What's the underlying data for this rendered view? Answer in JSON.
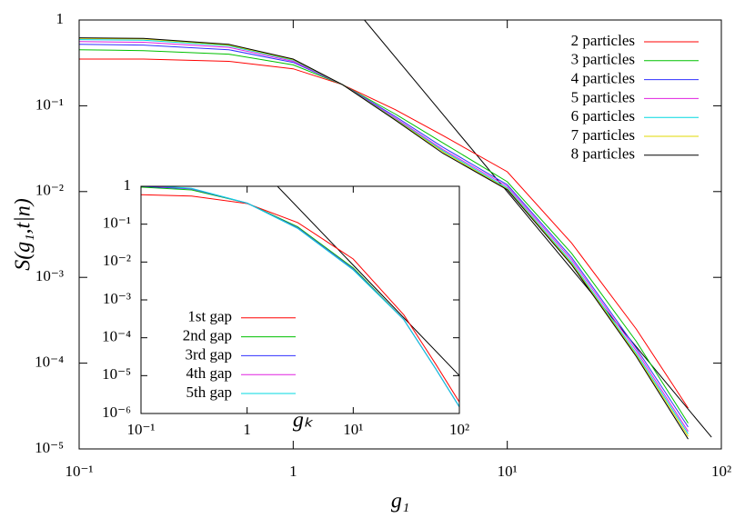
{
  "chart_data": [
    {
      "type": "line",
      "x_label": "g₁",
      "y_label": "S(g₁,t|n)",
      "log_x": true,
      "log_y": true,
      "xlim": [
        0.1,
        100
      ],
      "ylim": [
        1e-05,
        1
      ],
      "xticks": [
        {
          "value": 0.1,
          "label": "10⁻¹"
        },
        1,
        {
          "value": 10,
          "label": "10¹"
        },
        {
          "value": 100,
          "label": "10²"
        }
      ],
      "yticks": [
        {
          "value": 1e-05,
          "label": "10⁻⁵"
        },
        {
          "value": 0.0001,
          "label": "10⁻⁴"
        },
        {
          "value": 0.001,
          "label": "10⁻³"
        },
        {
          "value": 0.01,
          "label": "10⁻²"
        },
        {
          "value": 0.1,
          "label": "10⁻¹"
        },
        1
      ],
      "legend": "upper right",
      "x": [
        0.1,
        0.2,
        0.5,
        1,
        1.7,
        3,
        5,
        10,
        20,
        40,
        70
      ],
      "series": [
        {
          "name": "2 particles",
          "color": "#ff0000",
          "values": [
            0.35,
            0.35,
            0.33,
            0.27,
            0.176,
            0.09,
            0.045,
            0.017,
            0.0025,
            0.00025,
            3e-05
          ]
        },
        {
          "name": "3 particles",
          "color": "#00c000",
          "values": [
            0.45,
            0.44,
            0.4,
            0.3,
            0.176,
            0.08,
            0.037,
            0.013,
            0.0019,
            0.00018,
            2e-05
          ]
        },
        {
          "name": "4 particles",
          "color": "#3030ff",
          "values": [
            0.52,
            0.51,
            0.45,
            0.32,
            0.176,
            0.075,
            0.033,
            0.012,
            0.0017,
            0.00015,
            1.8e-05
          ]
        },
        {
          "name": "5 particles",
          "color": "#e020e0",
          "values": [
            0.56,
            0.55,
            0.48,
            0.33,
            0.176,
            0.072,
            0.031,
            0.0115,
            0.0016,
            0.00014,
            1.6e-05
          ]
        },
        {
          "name": "6 particles",
          "color": "#00d8e0",
          "values": [
            0.59,
            0.58,
            0.5,
            0.34,
            0.176,
            0.07,
            0.03,
            0.011,
            0.0015,
            0.00013,
            1.5e-05
          ]
        },
        {
          "name": "7 particles",
          "color": "#e0d800",
          "values": [
            0.61,
            0.6,
            0.51,
            0.345,
            0.176,
            0.069,
            0.029,
            0.0107,
            0.00145,
            0.000125,
            1.4e-05
          ]
        },
        {
          "name": "8 particles",
          "color": "#000000",
          "values": [
            0.62,
            0.61,
            0.52,
            0.35,
            0.176,
            0.068,
            0.028,
            0.0105,
            0.0014,
            0.00012,
            1.3e-05
          ]
        }
      ],
      "lines": [
        {
          "color": "#000000",
          "x": [
            2.15,
            90
          ],
          "values": [
            1,
            1.37e-05
          ]
        }
      ]
    },
    {
      "type": "line",
      "x_label": "gₖ",
      "log_x": true,
      "log_y": true,
      "xlim": [
        0.1,
        100
      ],
      "ylim": [
        1e-06,
        1
      ],
      "xticks": [
        {
          "value": 0.1,
          "label": "10⁻¹"
        },
        1,
        {
          "value": 10,
          "label": "10¹"
        },
        {
          "value": 100,
          "label": "10²"
        }
      ],
      "yticks": [
        {
          "value": 1e-06,
          "label": "10⁻⁶"
        },
        {
          "value": 1e-05,
          "label": "10⁻⁵"
        },
        {
          "value": 0.0001,
          "label": "10⁻⁴"
        },
        {
          "value": 0.001,
          "label": "10⁻³"
        },
        {
          "value": 0.01,
          "label": "10⁻²"
        },
        {
          "value": 0.1,
          "label": "10⁻¹"
        },
        1
      ],
      "legend": "lower left",
      "x": [
        0.1,
        0.3,
        1,
        3,
        10,
        30,
        60,
        100
      ],
      "series": [
        {
          "name": "1st gap",
          "color": "#ff0000",
          "values": [
            0.6,
            0.55,
            0.35,
            0.11,
            0.012,
            0.0004,
            2e-05,
            2e-06
          ]
        },
        {
          "name": "2nd gap",
          "color": "#00c000",
          "values": [
            0.95,
            0.8,
            0.36,
            0.085,
            0.007,
            0.0003,
            1.5e-05,
            1.5e-06
          ]
        },
        {
          "name": "3rd gap",
          "color": "#3030ff",
          "values": [
            1.0,
            0.85,
            0.36,
            0.08,
            0.0065,
            0.0003,
            1.5e-05,
            1.5e-06
          ]
        },
        {
          "name": "4th gap",
          "color": "#e020e0",
          "values": [
            1.05,
            0.87,
            0.36,
            0.078,
            0.0063,
            0.0003,
            1.5e-05,
            1.5e-06
          ]
        },
        {
          "name": "5th gap",
          "color": "#00d8e0",
          "values": [
            1.08,
            0.88,
            0.36,
            0.077,
            0.0062,
            0.0003,
            1.5e-05,
            1.5e-06
          ]
        }
      ],
      "lines": [
        {
          "color": "#000000",
          "x": [
            1.93,
            100
          ],
          "values": [
            1,
            1e-05
          ]
        }
      ]
    }
  ]
}
